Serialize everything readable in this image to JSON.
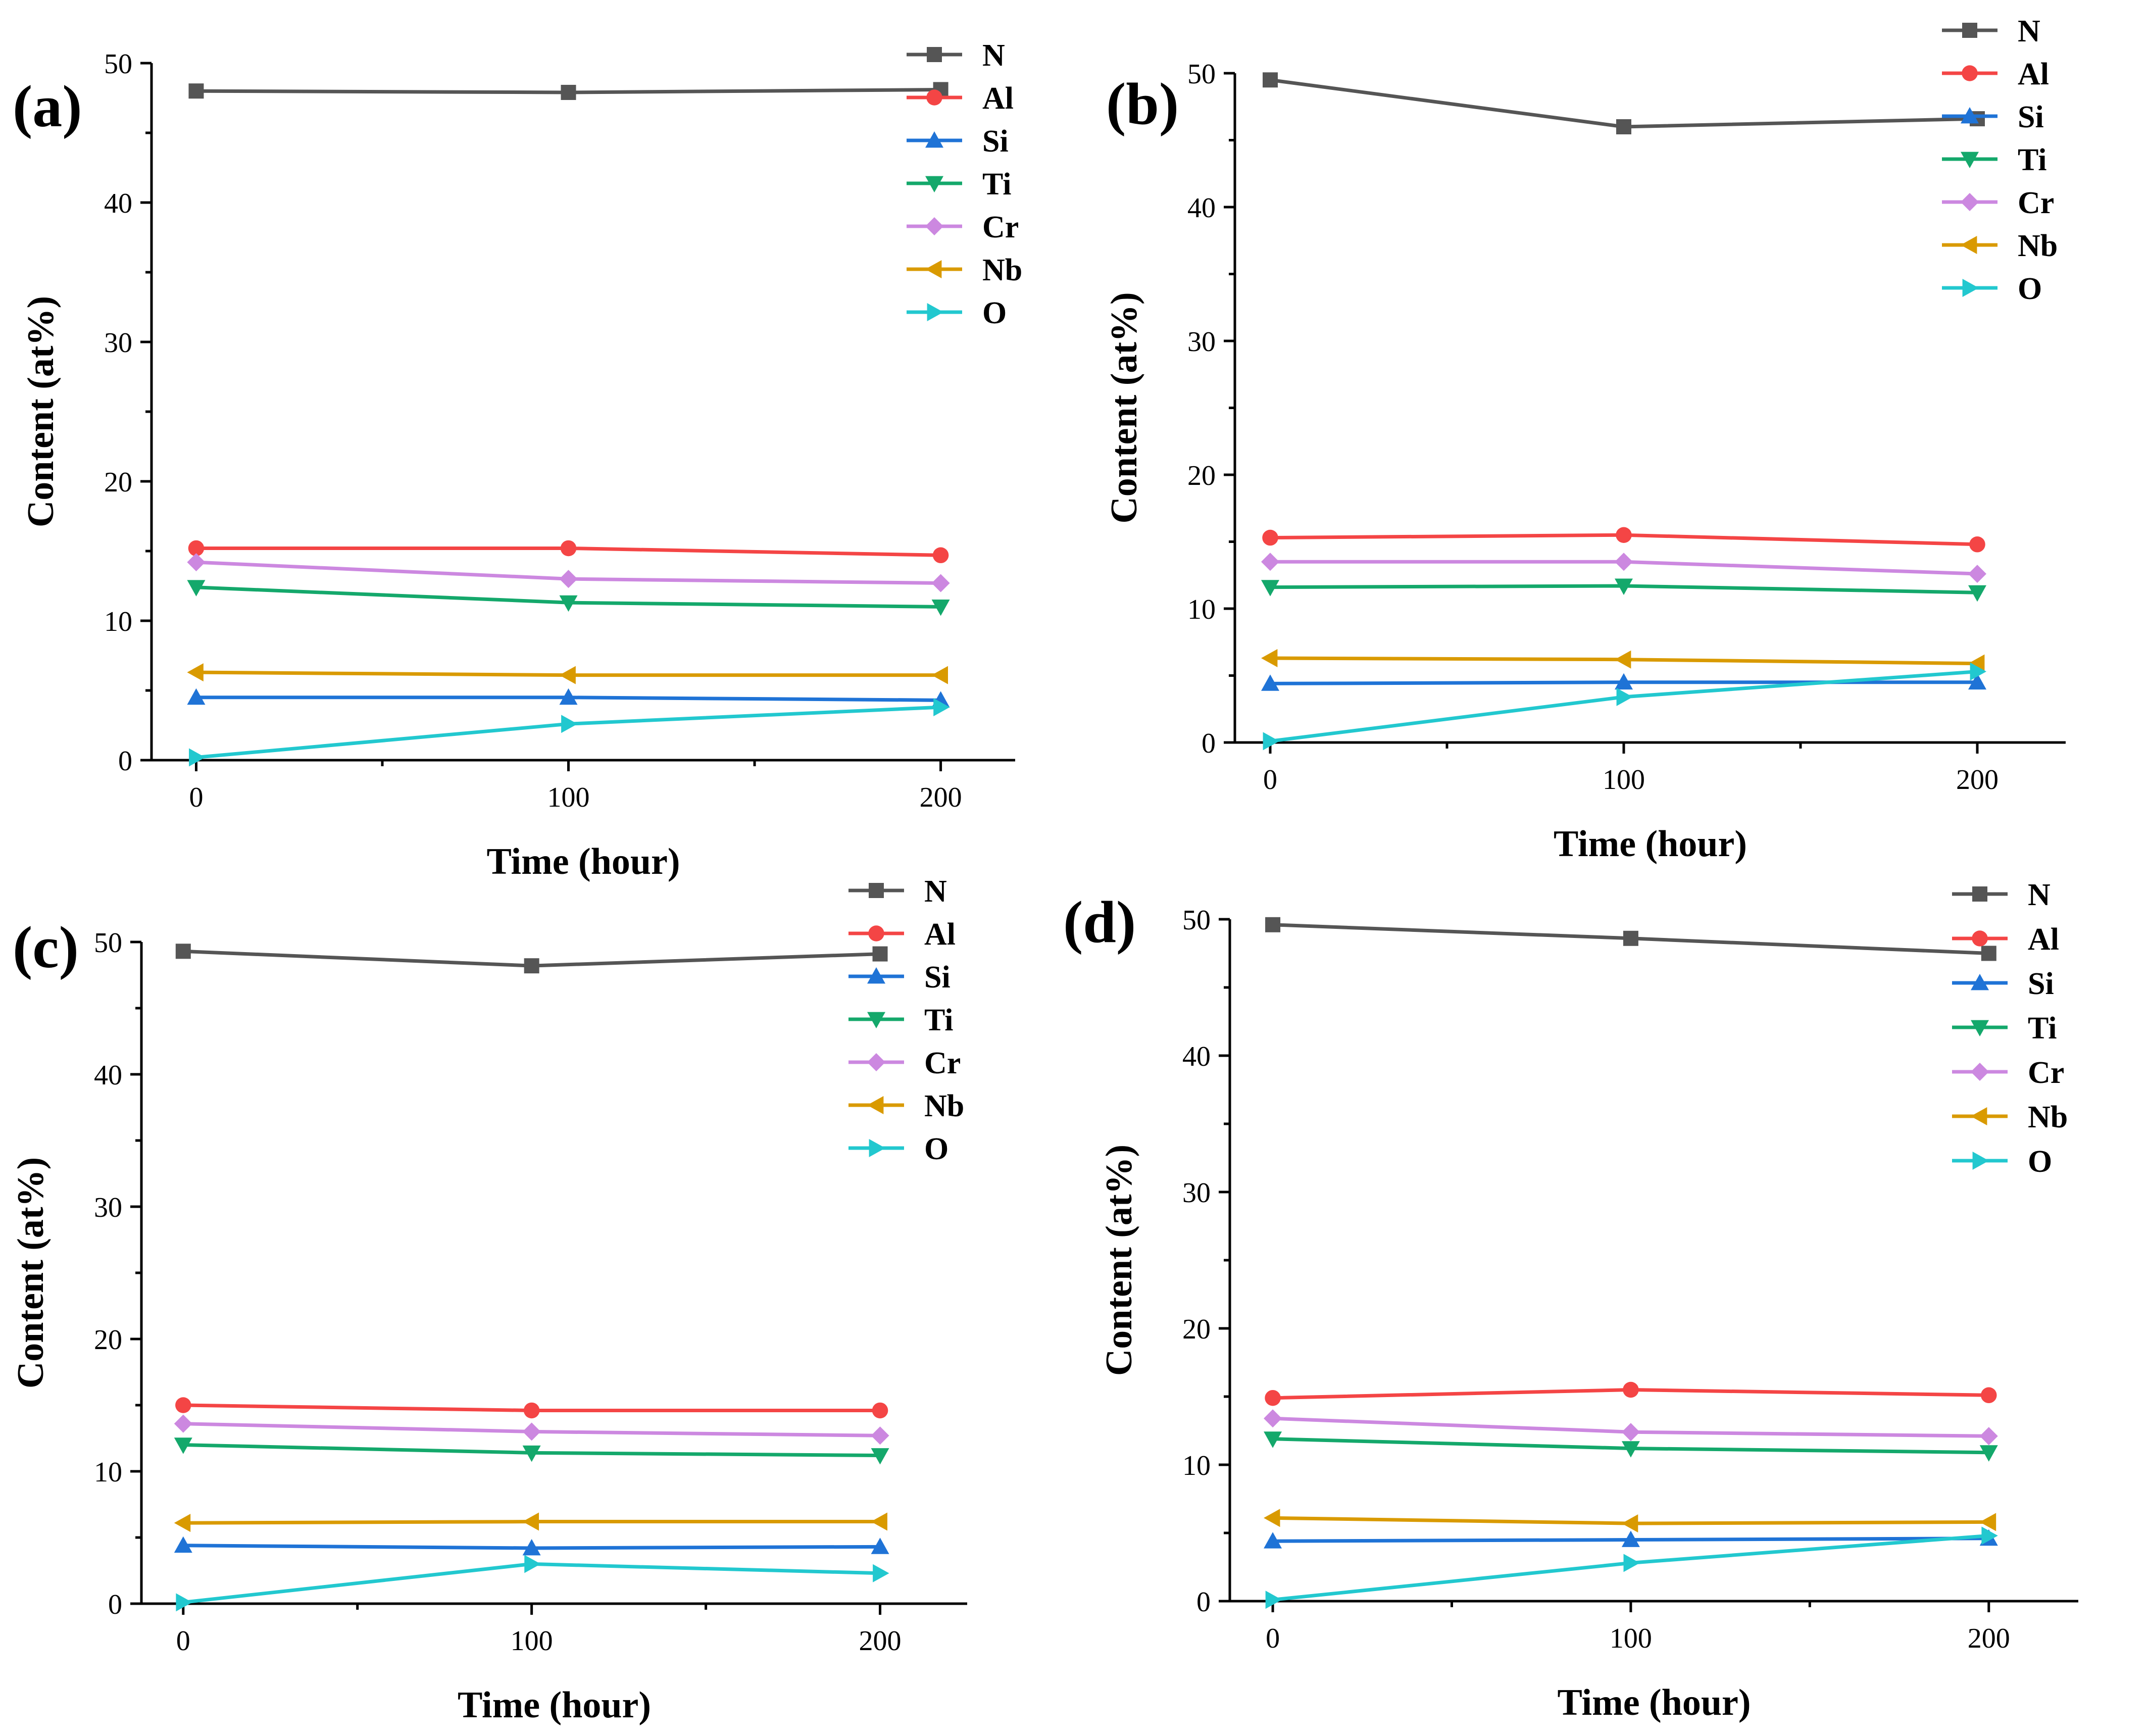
{
  "figure": {
    "panels": [
      "(a)",
      "(b)",
      "(c)",
      "(d)"
    ]
  },
  "series_styles": [
    {
      "name": "N",
      "color": "#555555",
      "marker": "square"
    },
    {
      "name": "Al",
      "color": "#f44545",
      "marker": "circle"
    },
    {
      "name": "Si",
      "color": "#1f73d6",
      "marker": "triangle-up"
    },
    {
      "name": "Ti",
      "color": "#14a86b",
      "marker": "triangle-down"
    },
    {
      "name": "Cr",
      "color": "#cc88e0",
      "marker": "diamond"
    },
    {
      "name": "Nb",
      "color": "#d99a00",
      "marker": "triangle-left"
    },
    {
      "name": "O",
      "color": "#22c8cf",
      "marker": "triangle-right"
    }
  ],
  "chart_data": [
    {
      "type": "line",
      "panel_label": "(a)",
      "xlabel": "Time (hour)",
      "ylabel": "Content (at%)",
      "x": [
        0,
        100,
        200
      ],
      "xlim": [
        -12,
        220
      ],
      "ylim": [
        0,
        50
      ],
      "xticks": [
        "0",
        "100",
        "200"
      ],
      "yticks": [
        "0",
        "10",
        "20",
        "30",
        "40",
        "50"
      ],
      "grid": false,
      "legend": "top-right",
      "series": [
        {
          "name": "N",
          "values": [
            48.0,
            47.9,
            48.1
          ]
        },
        {
          "name": "Al",
          "values": [
            15.2,
            15.2,
            14.7
          ]
        },
        {
          "name": "Si",
          "values": [
            4.5,
            4.5,
            4.3
          ]
        },
        {
          "name": "Ti",
          "values": [
            12.4,
            11.3,
            11.0
          ]
        },
        {
          "name": "Cr",
          "values": [
            14.2,
            13.0,
            12.7
          ]
        },
        {
          "name": "Nb",
          "values": [
            6.3,
            6.1,
            6.1
          ]
        },
        {
          "name": "O",
          "values": [
            0.2,
            2.6,
            3.8
          ]
        }
      ]
    },
    {
      "type": "line",
      "panel_label": "(b)",
      "xlabel": "Time (hour)",
      "ylabel": "Content (at%)",
      "x": [
        0,
        100,
        200
      ],
      "xlim": [
        -10,
        225
      ],
      "ylim": [
        0,
        50
      ],
      "xticks": [
        "0",
        "100",
        "200"
      ],
      "yticks": [
        "0",
        "10",
        "20",
        "30",
        "40",
        "50"
      ],
      "grid": false,
      "legend": "top-right",
      "series": [
        {
          "name": "N",
          "values": [
            49.5,
            46.0,
            46.6
          ]
        },
        {
          "name": "Al",
          "values": [
            15.3,
            15.5,
            14.8
          ]
        },
        {
          "name": "Si",
          "values": [
            4.4,
            4.5,
            4.5
          ]
        },
        {
          "name": "Ti",
          "values": [
            11.6,
            11.7,
            11.2
          ]
        },
        {
          "name": "Cr",
          "values": [
            13.5,
            13.5,
            12.6
          ]
        },
        {
          "name": "Nb",
          "values": [
            6.3,
            6.2,
            5.9
          ]
        },
        {
          "name": "O",
          "values": [
            0.1,
            3.4,
            5.3
          ]
        }
      ]
    },
    {
      "type": "line",
      "panel_label": "(c)",
      "xlabel": "Time (hour)",
      "ylabel": "Content (at%)",
      "x": [
        0,
        100,
        200
      ],
      "xlim": [
        -12,
        225
      ],
      "ylim": [
        0,
        50
      ],
      "xticks": [
        "0",
        "100",
        "200"
      ],
      "yticks": [
        "0",
        "10",
        "20",
        "30",
        "40",
        "50"
      ],
      "grid": false,
      "legend": "top-right",
      "series": [
        {
          "name": "N",
          "values": [
            49.3,
            48.2,
            49.1
          ]
        },
        {
          "name": "Al",
          "values": [
            15.0,
            14.6,
            14.6
          ]
        },
        {
          "name": "Si",
          "values": [
            4.4,
            4.2,
            4.3
          ]
        },
        {
          "name": "Ti",
          "values": [
            12.0,
            11.4,
            11.2
          ]
        },
        {
          "name": "Cr",
          "values": [
            13.6,
            13.0,
            12.7
          ]
        },
        {
          "name": "Nb",
          "values": [
            6.1,
            6.2,
            6.2
          ]
        },
        {
          "name": "O",
          "values": [
            0.1,
            3.0,
            2.3
          ]
        }
      ]
    },
    {
      "type": "line",
      "panel_label": "(d)",
      "xlabel": "Time (hour)",
      "ylabel": "Content (at%)",
      "x": [
        0,
        100,
        200
      ],
      "xlim": [
        -12,
        225
      ],
      "ylim": [
        0,
        50
      ],
      "xticks": [
        "0",
        "100",
        "200"
      ],
      "yticks": [
        "0",
        "10",
        "20",
        "30",
        "40",
        "50"
      ],
      "grid": false,
      "legend": "top-right",
      "series": [
        {
          "name": "N",
          "values": [
            49.6,
            48.6,
            47.5
          ]
        },
        {
          "name": "Al",
          "values": [
            14.9,
            15.5,
            15.1
          ]
        },
        {
          "name": "Si",
          "values": [
            4.4,
            4.5,
            4.6
          ]
        },
        {
          "name": "Ti",
          "values": [
            11.9,
            11.2,
            10.9
          ]
        },
        {
          "name": "Cr",
          "values": [
            13.4,
            12.4,
            12.1
          ]
        },
        {
          "name": "Nb",
          "values": [
            6.1,
            5.7,
            5.8
          ]
        },
        {
          "name": "O",
          "values": [
            0.1,
            2.8,
            4.8
          ]
        }
      ]
    }
  ]
}
